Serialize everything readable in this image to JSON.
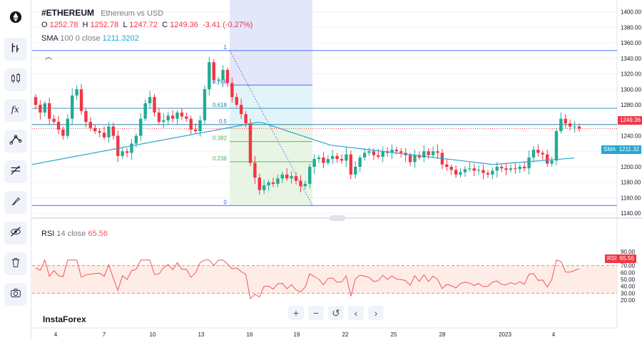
{
  "legend": {
    "symbol": "#ETHEREUM",
    "description": "Ethereum vs USD",
    "o_label": "O",
    "o": "1252.78",
    "h_label": "H",
    "h": "1252.78",
    "l_label": "L",
    "l": "1247.72",
    "c_label": "C",
    "c": "1249.36",
    "change": "-3.41 (-0.27%)"
  },
  "sma_legend": {
    "name": "SMA",
    "params": "100 0 close",
    "value": "1211.3202"
  },
  "rsi_legend": {
    "name": "RSI",
    "params": "14 close",
    "value": "65.56"
  },
  "brand": "InstaForex",
  "price_tags": {
    "last_price": "1249.36",
    "sma_label": "SMA",
    "sma_value": "1211.32",
    "rsi_label": "RSI",
    "rsi_value": "65.56"
  },
  "toolbar": [
    "ethereum-logo-icon",
    "cursor-icon",
    "candles-icon",
    "fx-icon",
    "trend-line-icon",
    "fib-icon",
    "brush-icon",
    "hide-icon",
    "trash-icon",
    "camera-icon"
  ],
  "nav_buttons": [
    "+",
    "−",
    "↺",
    "‹",
    "›"
  ],
  "colors": {
    "up": "#22ab94",
    "down": "#f23645",
    "sma": "#26a6d1",
    "rsi": "#f7525f"
  },
  "chart_data": [
    {
      "type": "candlestick",
      "title": "#ETHEREUM",
      "x_tick_labels": [
        "4",
        "7",
        "10",
        "13",
        "16",
        "19",
        "22",
        "25",
        "28",
        "2023",
        "4"
      ],
      "y_ticks": [
        1140,
        1160,
        1180,
        1200,
        1220,
        1240,
        1260,
        1280,
        1300,
        1320,
        1340,
        1360,
        1380,
        1400
      ],
      "ylim": [
        1132,
        1405
      ],
      "close": [
        1280,
        1270,
        1282,
        1262,
        1258,
        1248,
        1240,
        1262,
        1292,
        1300,
        1272,
        1258,
        1250,
        1246,
        1244,
        1238,
        1252,
        1240,
        1214,
        1220,
        1218,
        1230,
        1240,
        1262,
        1282,
        1290,
        1270,
        1258,
        1260,
        1266,
        1262,
        1270,
        1265,
        1262,
        1248,
        1246,
        1260,
        1300,
        1335,
        1312,
        1312,
        1325,
        1308,
        1290,
        1280,
        1268,
        1256,
        1205,
        1186,
        1170,
        1176,
        1180,
        1178,
        1185,
        1190,
        1185,
        1188,
        1182,
        1175,
        1178,
        1200,
        1210,
        1212,
        1205,
        1210,
        1214,
        1210,
        1208,
        1216,
        1190,
        1200,
        1212,
        1218,
        1220,
        1215,
        1213,
        1220,
        1218,
        1222,
        1220,
        1218,
        1215,
        1206,
        1215,
        1212,
        1220,
        1215,
        1220,
        1218,
        1203,
        1200,
        1196,
        1190,
        1193,
        1197,
        1198,
        1195,
        1196,
        1192,
        1190,
        1195,
        1200,
        1198,
        1196,
        1198,
        1197,
        1200,
        1198,
        1212,
        1222,
        1218,
        1216,
        1204,
        1208,
        1246,
        1262,
        1256,
        1252,
        1252,
        1249.36
      ],
      "sma_series": {
        "name": "SMA",
        "start": 1203,
        "end": 1211.32
      },
      "fibonacci": {
        "levels": [
          "1",
          "0.786",
          "0.618",
          "0.5",
          "0.382",
          "0.236",
          "0"
        ],
        "prices": [
          1350,
          1305.5,
          1275.5,
          1254.5,
          1232.5,
          1206.5,
          1150
        ]
      },
      "last_price": 1249.36
    },
    {
      "type": "line",
      "title": "RSI",
      "y_ticks": [
        20,
        30,
        40,
        50,
        60,
        70,
        80,
        90
      ],
      "ylim": [
        15,
        93
      ],
      "bands": [
        30,
        70
      ],
      "last": 65.56
    }
  ]
}
